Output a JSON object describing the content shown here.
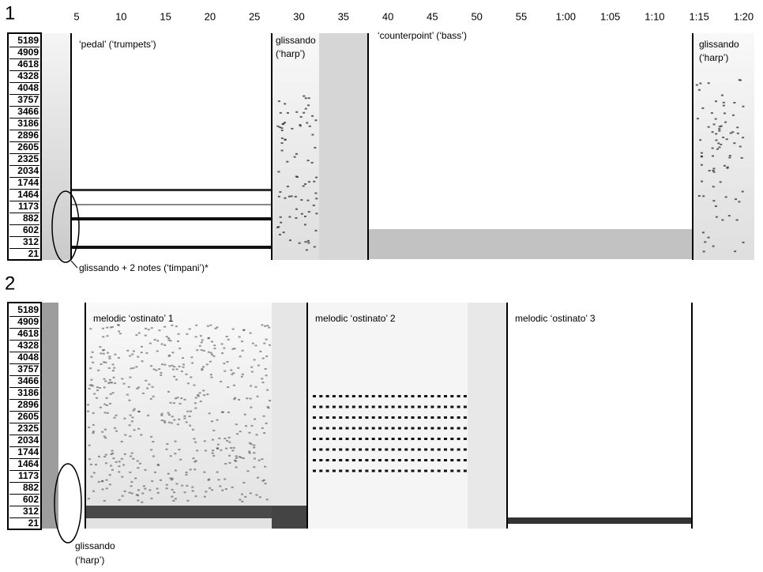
{
  "time_axis": [
    "5",
    "10",
    "15",
    "20",
    "25",
    "30",
    "35",
    "40",
    "45",
    "50",
    "55",
    "1:00",
    "1:05",
    "1:10",
    "1:15",
    "1:20"
  ],
  "frequency_axis": [
    "5189",
    "4909",
    "4618",
    "4328",
    "4048",
    "3757",
    "3466",
    "3186",
    "2896",
    "2605",
    "2325",
    "2034",
    "1744",
    "1464",
    "1173",
    "882",
    "602",
    "312",
    "21"
  ],
  "panels": [
    {
      "number": "1",
      "annotations": [
        "‘pedal’ (‘trumpets’)",
        "glissando",
        "(‘harp’)",
        "‘counterpoint’ (‘bass’)",
        "glissando",
        "(‘harp’)"
      ],
      "footnote": "glissando + 2 notes (‘timpani’)*"
    },
    {
      "number": "2",
      "annotations": [
        "melodic ‘ostinato’ 1",
        "melodic ‘ostinato’ 2",
        "melodic ‘ostinato’ 3"
      ],
      "footnote": [
        "glissando",
        "(‘harp’)"
      ]
    }
  ]
}
